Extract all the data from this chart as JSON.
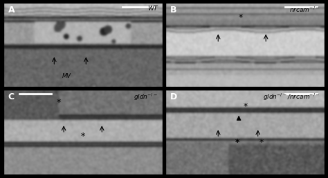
{
  "figsize": [
    4.74,
    2.58
  ],
  "dpi": 100,
  "panels": [
    "A",
    "B",
    "C",
    "D"
  ],
  "genotype_labels": [
    "WT",
    "nrcam$^{-/-}$",
    "gldn$^{-/-}$",
    "gldn$^{-/-}$/nrcam$^{-/-}$"
  ],
  "panel_label_color": "#ffffff",
  "genotype_label_color": "#000000",
  "background": "#000000",
  "panel_label_fontsize": 9,
  "genotype_fontsize": 6.5
}
